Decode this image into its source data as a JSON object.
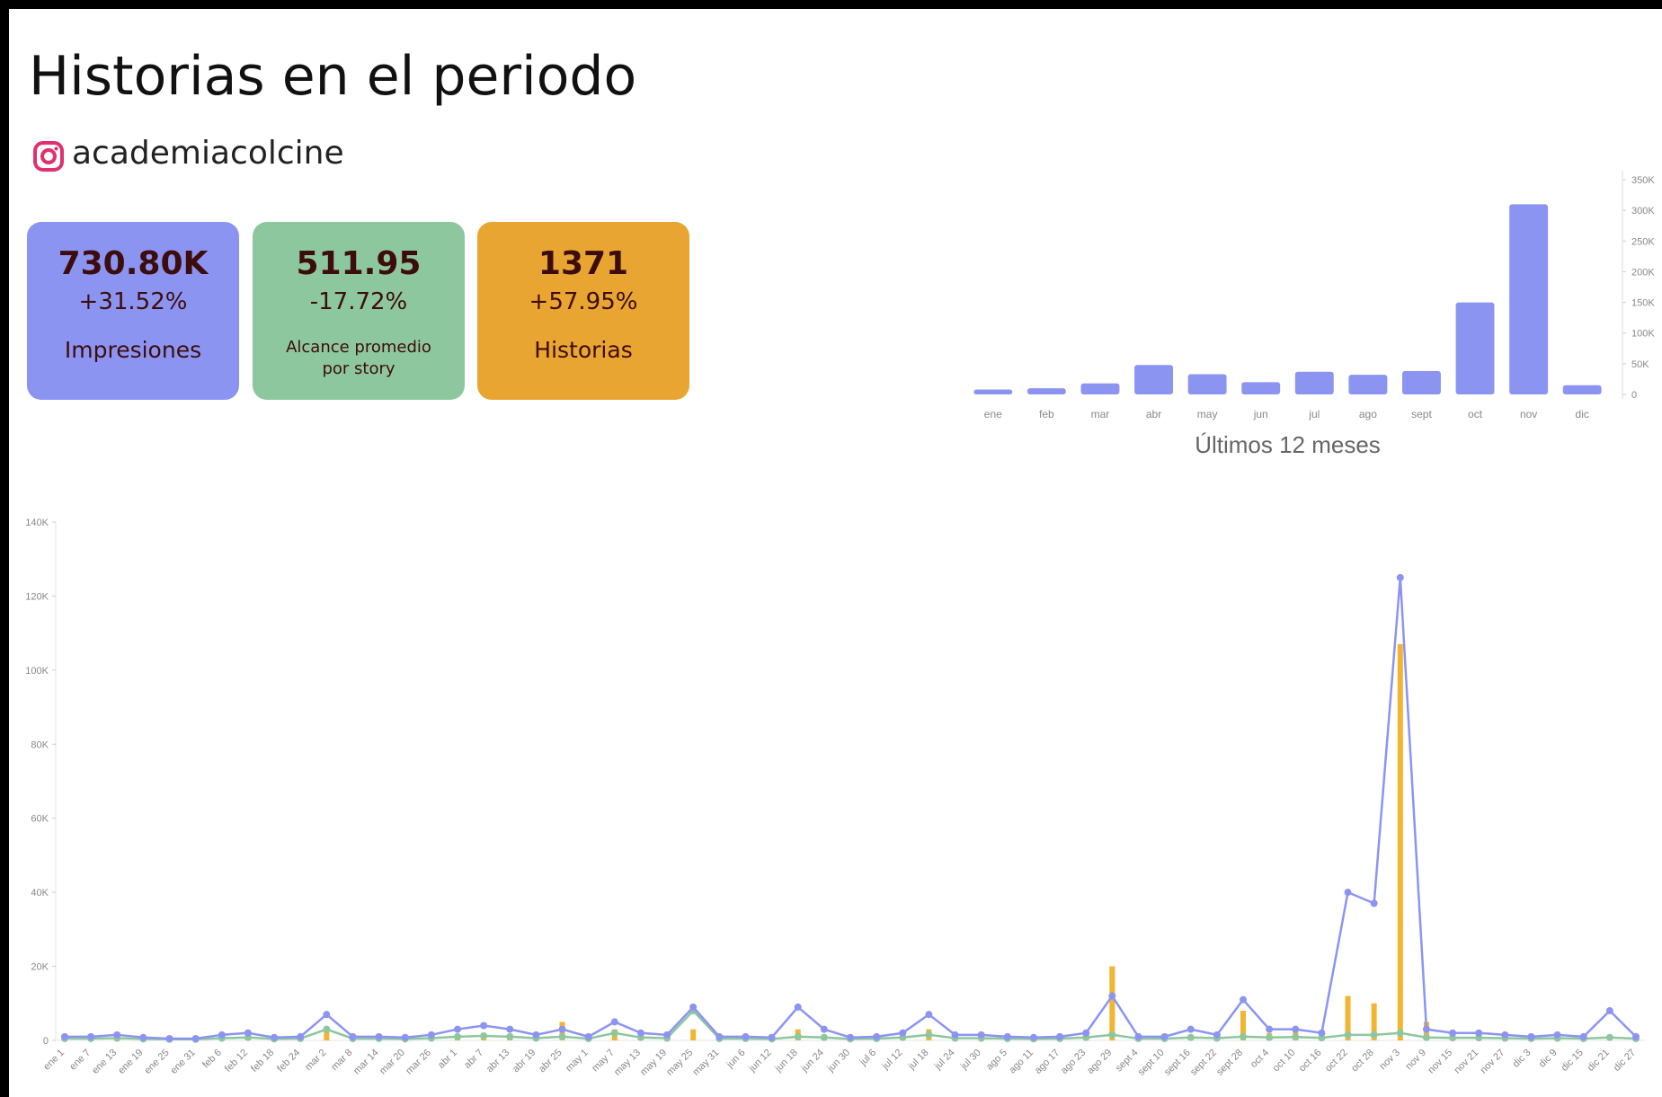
{
  "header": {
    "title": "Historias en el periodo",
    "account": "academiacolcine"
  },
  "cards": [
    {
      "value": "730.80K",
      "change": "+31.52%",
      "label": "Impresiones",
      "color": "#8c94f2"
    },
    {
      "value": "511.95",
      "change": "-17.72%",
      "label": "Alcance promedio por story",
      "color": "#8dc79e"
    },
    {
      "value": "1371",
      "change": "+57.95%",
      "label": "Historias",
      "color": "#e8a531"
    }
  ],
  "chart_data": [
    {
      "type": "bar",
      "x_label": "Últimos 12 meses",
      "categories": [
        "ene",
        "feb",
        "mar",
        "abr",
        "may",
        "jun",
        "jul",
        "ago",
        "sept",
        "oct",
        "nov",
        "dic"
      ],
      "values": [
        8000,
        10000,
        18000,
        48000,
        33000,
        20000,
        37000,
        32000,
        38000,
        150000,
        310000,
        15000
      ],
      "color": "#8c94f2",
      "ylim": [
        0,
        350000
      ],
      "yticks": [
        0,
        {
          "value": 50000,
          "label": "50K"
        },
        {
          "value": 100000,
          "label": "100K"
        },
        {
          "value": 150000,
          "label": "150K"
        },
        {
          "value": 200000,
          "label": "200K"
        },
        {
          "value": 250000,
          "label": "250K"
        },
        {
          "value": 300000,
          "label": "300K"
        },
        {
          "value": 350000,
          "label": "350K"
        }
      ]
    },
    {
      "type": "line",
      "categories": [
        "ene 1",
        "ene 7",
        "ene 13",
        "ene 19",
        "ene 25",
        "ene 31",
        "feb 6",
        "feb 12",
        "feb 18",
        "feb 24",
        "mar 2",
        "mar 8",
        "mar 14",
        "mar 20",
        "mar 26",
        "abr 1",
        "abr 7",
        "abr 13",
        "abr 19",
        "abr 25",
        "may 1",
        "may 7",
        "may 13",
        "may 19",
        "may 25",
        "may 31",
        "jun 6",
        "jun 12",
        "jun 18",
        "jun 24",
        "jun 30",
        "jul 6",
        "jul 12",
        "jul 18",
        "jul 24",
        "jul 30",
        "ago 5",
        "ago 11",
        "ago 17",
        "ago 23",
        "ago 29",
        "sept 4",
        "sept 10",
        "sept 16",
        "sept 22",
        "sept 28",
        "oct 4",
        "oct 10",
        "oct 16",
        "oct 22",
        "oct 28",
        "nov 3",
        "nov 9",
        "nov 15",
        "nov 21",
        "nov 27",
        "dic 3",
        "dic 9",
        "dic 15",
        "dic 21",
        "dic 27"
      ],
      "series": [
        {
          "type": "bar",
          "color": "#f2b431",
          "values": [
            500,
            500,
            800,
            300,
            200,
            200,
            800,
            1000,
            300,
            500,
            3000,
            500,
            500,
            300,
            800,
            1500,
            2000,
            1500,
            800,
            5000,
            500,
            3000,
            1000,
            800,
            3000,
            500,
            500,
            300,
            3000,
            1500,
            300,
            500,
            1000,
            3000,
            800,
            800,
            500,
            300,
            500,
            1000,
            20000,
            500,
            500,
            1500,
            800,
            8000,
            2000,
            3000,
            1500,
            12000,
            10000,
            107000,
            5000,
            1000,
            1000,
            800,
            500,
            800,
            500,
            1000,
            500
          ]
        },
        {
          "type": "line",
          "color": "#8dc79e",
          "values": [
            500,
            500,
            600,
            400,
            300,
            300,
            600,
            800,
            400,
            500,
            3000,
            500,
            500,
            400,
            600,
            1000,
            1200,
            1000,
            600,
            1000,
            500,
            2000,
            800,
            600,
            8000,
            500,
            500,
            400,
            1000,
            800,
            400,
            500,
            800,
            1500,
            600,
            600,
            500,
            400,
            500,
            800,
            1500,
            500,
            500,
            800,
            600,
            1000,
            800,
            900,
            700,
            1500,
            1500,
            2000,
            800,
            700,
            700,
            600,
            500,
            600,
            500,
            800,
            500
          ]
        },
        {
          "type": "line",
          "color": "#8c94f2",
          "values": [
            1000,
            1000,
            1500,
            800,
            500,
            500,
            1500,
            2000,
            800,
            1000,
            7000,
            1000,
            1000,
            800,
            1500,
            3000,
            4000,
            3000,
            1500,
            3000,
            1000,
            5000,
            2000,
            1500,
            9000,
            1000,
            1000,
            800,
            9000,
            3000,
            800,
            1000,
            2000,
            7000,
            1500,
            1500,
            1000,
            800,
            1000,
            2000,
            12000,
            1000,
            1000,
            3000,
            1500,
            11000,
            3000,
            3000,
            2000,
            40000,
            37000,
            125000,
            3000,
            2000,
            2000,
            1500,
            1000,
            1500,
            1000,
            8000,
            1000
          ]
        }
      ],
      "ylim": [
        0,
        140000
      ],
      "yticks": [
        0,
        {
          "value": 20000,
          "label": "20K"
        },
        {
          "value": 40000,
          "label": "40K"
        },
        {
          "value": 60000,
          "label": "60K"
        },
        {
          "value": 80000,
          "label": "80K"
        },
        {
          "value": 100000,
          "label": "100K"
        },
        {
          "value": 120000,
          "label": "120K"
        },
        {
          "value": 140000,
          "label": "140K"
        }
      ]
    }
  ]
}
